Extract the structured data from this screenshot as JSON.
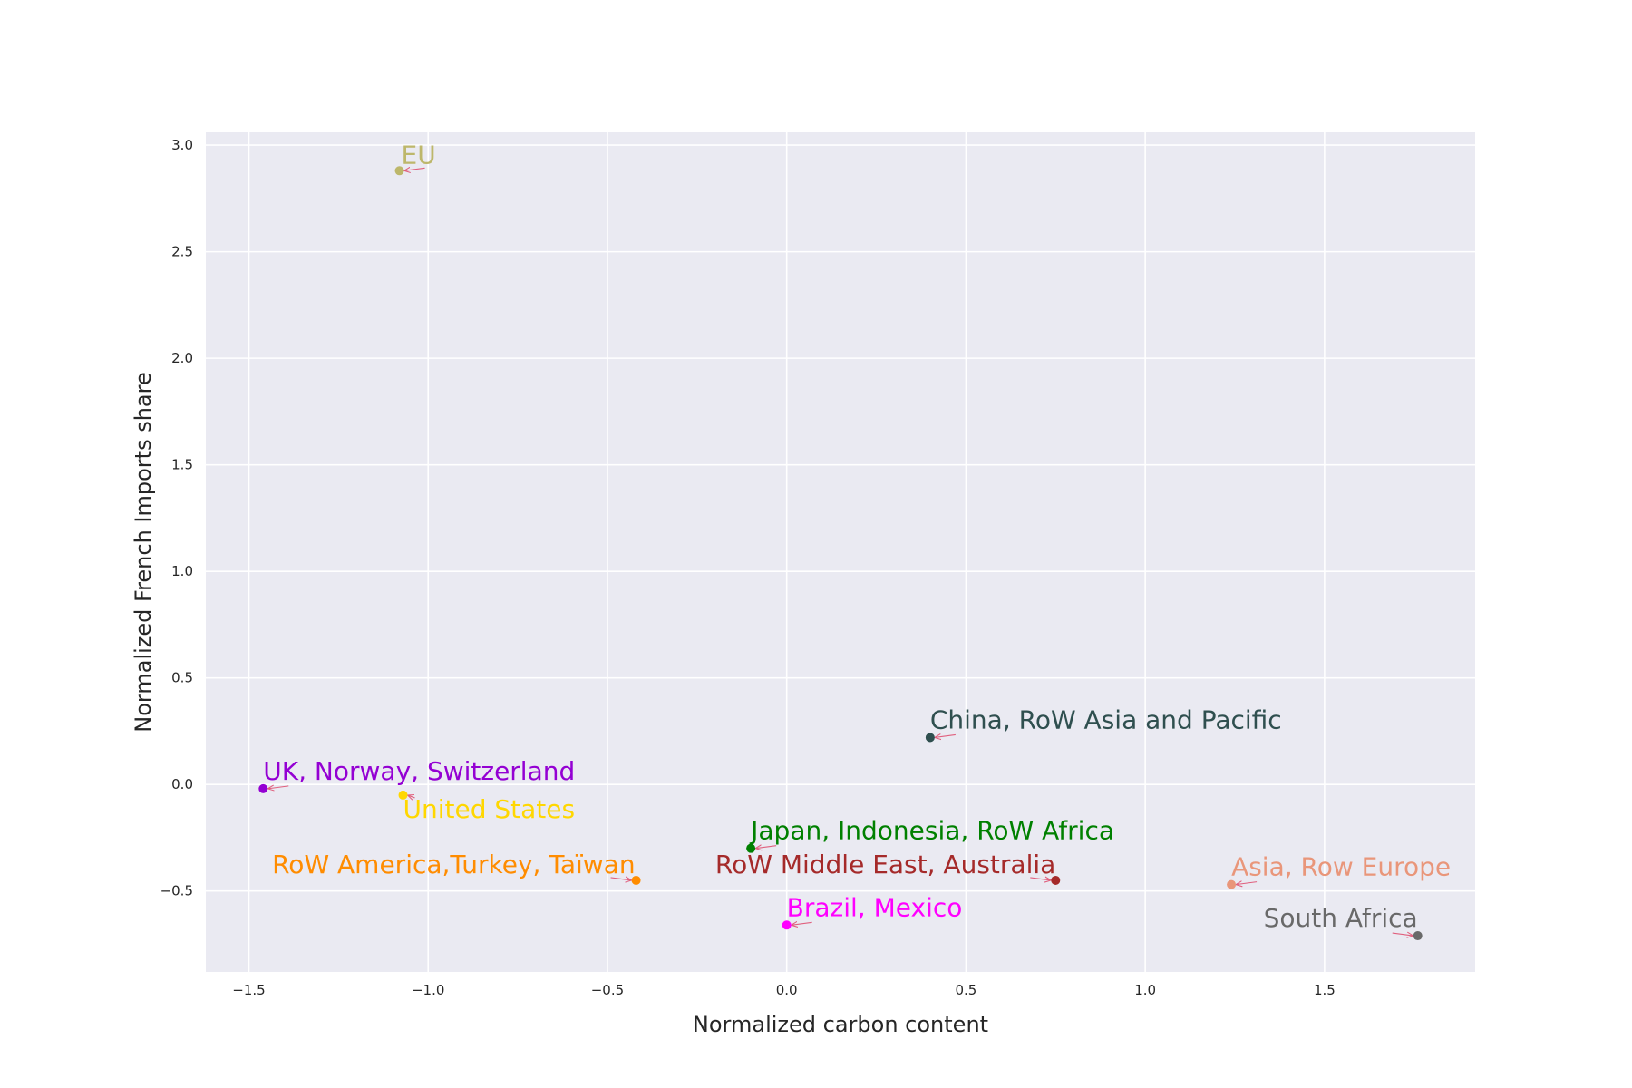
{
  "chart_data": {
    "type": "scatter",
    "xlabel": "Normalized carbon content",
    "ylabel": "Normalized French Imports share",
    "xlim": [
      -1.62,
      1.92
    ],
    "ylim": [
      -0.88,
      3.06
    ],
    "xticks": [
      -1.5,
      -1.0,
      -0.5,
      0.0,
      0.5,
      1.0,
      1.5
    ],
    "xtick_labels": [
      "−1.5",
      "−1.0",
      "−0.5",
      "0.0",
      "0.5",
      "1.0",
      "1.5"
    ],
    "yticks": [
      -0.5,
      0.0,
      0.5,
      1.0,
      1.5,
      2.0,
      2.5,
      3.0
    ],
    "ytick_labels": [
      "−0.5",
      "0.0",
      "0.5",
      "1.0",
      "1.5",
      "2.0",
      "2.5",
      "3.0"
    ],
    "grid": true,
    "legend": "none",
    "background_color": "#eaeaf2",
    "grid_color": "#ffffff",
    "arrow_color": "#e0607e",
    "points": [
      {
        "label": "EU",
        "x": -1.08,
        "y": 2.88,
        "color": "#bdb76b"
      },
      {
        "label": "China, RoW Asia and Pacific",
        "x": 0.4,
        "y": 0.22,
        "color": "#2f4f4f"
      },
      {
        "label": "UK, Norway, Switzerland",
        "x": -1.46,
        "y": -0.02,
        "color": "#9400d3"
      },
      {
        "label": "United States",
        "x": -1.07,
        "y": -0.05,
        "color": "#ffd700"
      },
      {
        "label": "Japan, Indonesia, RoW Africa",
        "x": -0.1,
        "y": -0.3,
        "color": "#008000"
      },
      {
        "label": "RoW America,Turkey, Taïwan",
        "x": -0.42,
        "y": -0.45,
        "color": "#ff8c00"
      },
      {
        "label": "RoW Middle East, Australia",
        "x": 0.75,
        "y": -0.45,
        "color": "#a52a2a"
      },
      {
        "label": "Asia, Row Europe",
        "x": 1.24,
        "y": -0.47,
        "color": "#e9967a"
      },
      {
        "label": "Brazil, Mexico",
        "x": 0.0,
        "y": -0.66,
        "color": "#ff00ff"
      },
      {
        "label": "South Africa",
        "x": 1.76,
        "y": -0.71,
        "color": "#696969"
      }
    ]
  }
}
